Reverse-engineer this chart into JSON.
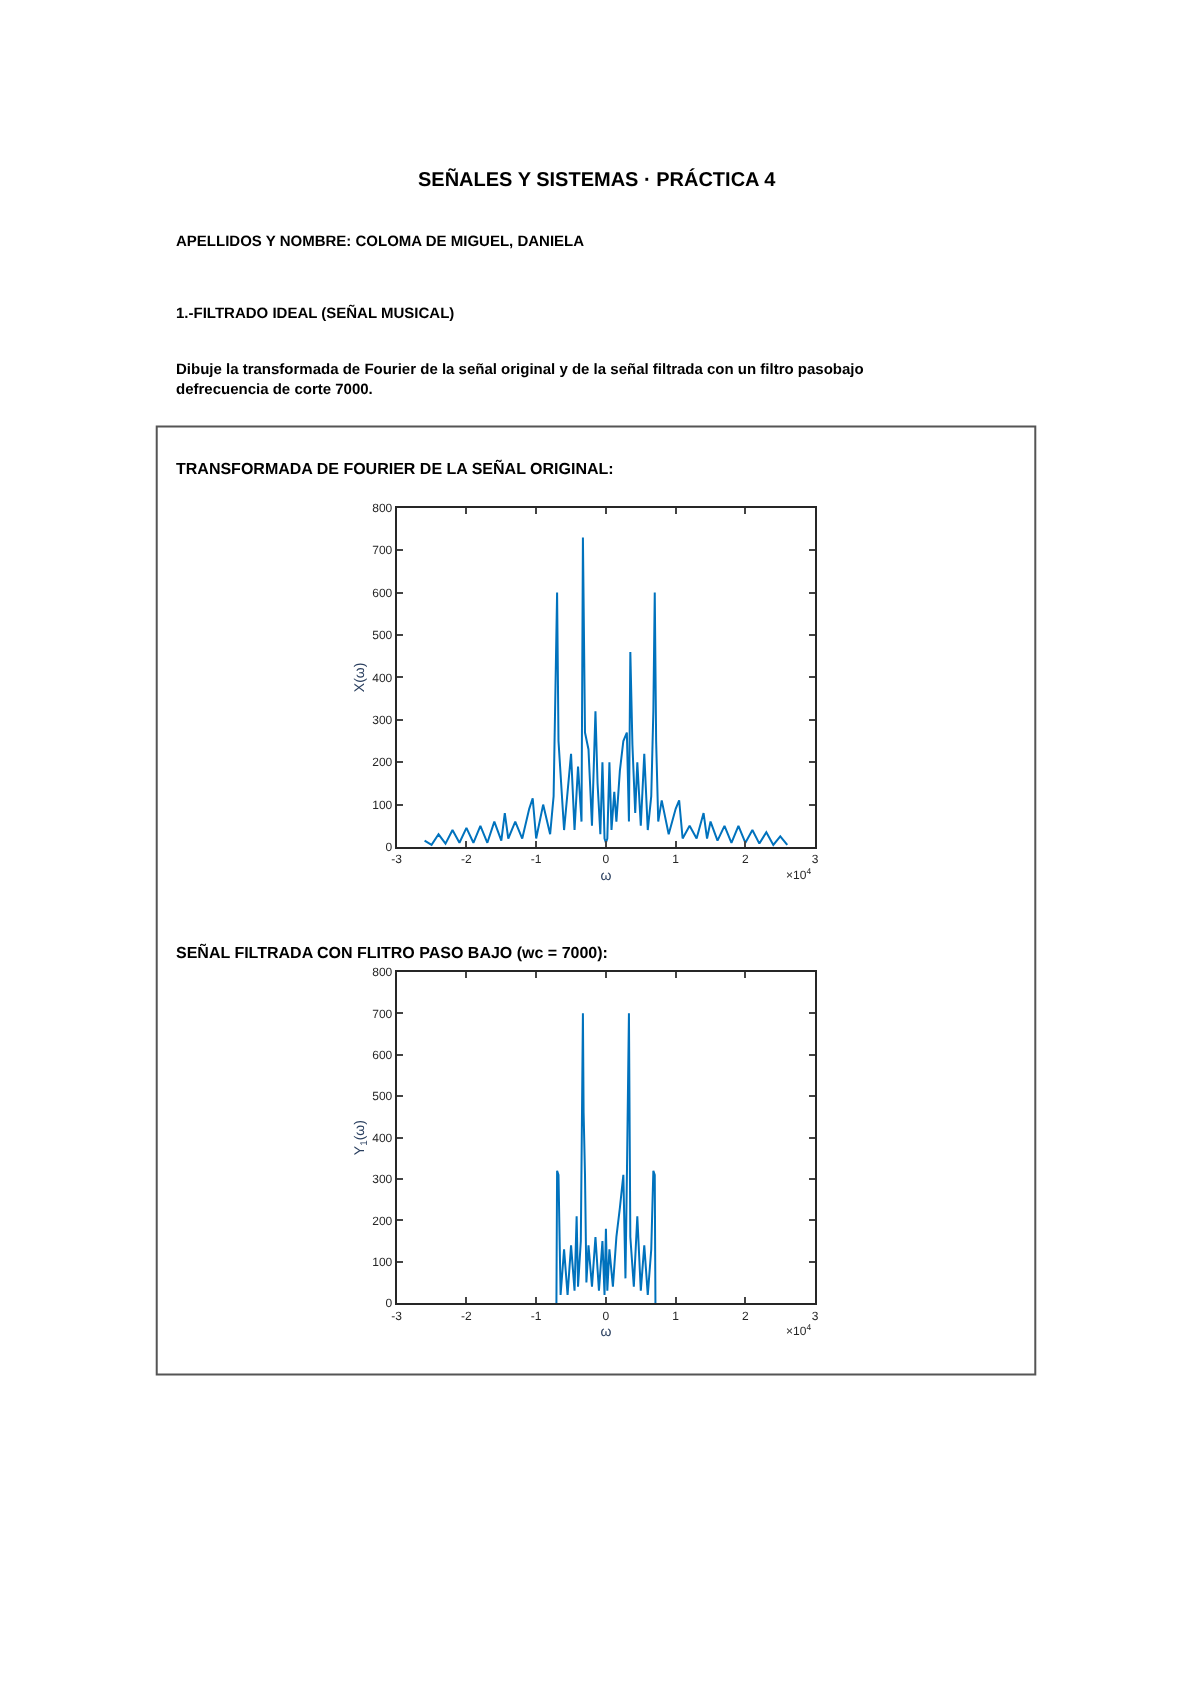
{
  "chart_data": [
    {
      "type": "line",
      "title": "TRANSFORMADA DE FOURIER DE LA SEÑAL ORIGINAL:",
      "xlabel": "ω",
      "ylabel": "X(ω)",
      "annotations": [
        "SEÑALES Y SISTEMAS · PRÁCTICA 4",
        "APELLIDOS Y NOMBRE: COLOMA DE MIGUEL, DANIELA",
        "1.-FILTRADO IDEAL (SEÑAL MUSICAL)",
        "Dibuje la transformada de Fourier de la señal original y de la señal filtrada con un filtro pasobajo defrecuencia de corte 7000.",
        "×10$^{4}$"
      ],
      "xlim": [
        -3,
        3
      ],
      "xticks": [
        -3,
        -2,
        -1,
        0,
        1,
        2,
        3
      ],
      "ylim": [
        0,
        800
      ],
      "yticks": [
        0,
        100,
        200,
        300,
        400,
        500,
        600,
        700,
        800
      ],
      "series": [
        {
          "color": "#0072bd",
          "x": [
            -2.6,
            -2.5,
            -2.4,
            -2.3,
            -2.2,
            -2.1,
            -2.0,
            -1.9,
            -1.8,
            -1.7,
            -1.6,
            -1.5,
            -1.45,
            -1.4,
            -1.3,
            -1.2,
            -1.1,
            -1.05,
            -1.0,
            -0.9,
            -0.8,
            -0.75,
            -0.7,
            -0.68,
            -0.6,
            -0.55,
            -0.5,
            -0.45,
            -0.4,
            -0.35,
            -0.33,
            -0.3,
            -0.25,
            -0.2,
            -0.15,
            -0.12,
            -0.08,
            -0.05,
            -0.02,
            0,
            0.02,
            0.05,
            0.08,
            0.12,
            0.15,
            0.2,
            0.25,
            0.3,
            0.33,
            0.35,
            0.38,
            0.42,
            0.45,
            0.5,
            0.55,
            0.6,
            0.65,
            0.68,
            0.7,
            0.72,
            0.75,
            0.8,
            0.9,
            1.0,
            1.05,
            1.1,
            1.2,
            1.3,
            1.4,
            1.45,
            1.5,
            1.6,
            1.7,
            1.8,
            1.9,
            2.0,
            2.1,
            2.2,
            2.3,
            2.4,
            2.5,
            2.6
          ],
          "values": [
            15,
            5,
            30,
            8,
            40,
            10,
            45,
            10,
            50,
            10,
            60,
            15,
            80,
            20,
            60,
            20,
            90,
            115,
            20,
            100,
            30,
            120,
            600,
            250,
            40,
            130,
            220,
            40,
            190,
            60,
            730,
            270,
            230,
            50,
            320,
            150,
            30,
            200,
            20,
            10,
            20,
            200,
            40,
            130,
            60,
            180,
            250,
            270,
            60,
            460,
            240,
            80,
            200,
            50,
            220,
            40,
            120,
            320,
            600,
            250,
            60,
            110,
            30,
            90,
            110,
            20,
            50,
            20,
            80,
            20,
            60,
            15,
            50,
            10,
            50,
            10,
            40,
            8,
            35,
            5,
            25,
            5
          ]
        }
      ]
    },
    {
      "type": "line",
      "title": "SEÑAL FILTRADA CON FLITRO PASO BAJO (wc = 7000):",
      "xlabel": "ω",
      "ylabel": "Y$_{1}$(ω)",
      "annotations": [
        "×10$^{4}$"
      ],
      "xlim": [
        -3,
        3
      ],
      "xticks": [
        -3,
        -2,
        -1,
        0,
        1,
        2,
        3
      ],
      "ylim": [
        0,
        800
      ],
      "yticks": [
        0,
        100,
        200,
        300,
        400,
        500,
        600,
        700,
        800
      ],
      "series": [
        {
          "color": "#0072bd",
          "x": [
            -0.71,
            -0.7,
            -0.68,
            -0.65,
            -0.6,
            -0.55,
            -0.5,
            -0.45,
            -0.42,
            -0.4,
            -0.36,
            -0.33,
            -0.32,
            -0.3,
            -0.28,
            -0.25,
            -0.2,
            -0.15,
            -0.1,
            -0.05,
            -0.02,
            0,
            0.02,
            0.05,
            0.1,
            0.15,
            0.2,
            0.25,
            0.28,
            0.3,
            0.33,
            0.35,
            0.4,
            0.45,
            0.5,
            0.55,
            0.6,
            0.65,
            0.68,
            0.7,
            0.71
          ],
          "values": [
            0,
            320,
            310,
            20,
            130,
            20,
            140,
            30,
            210,
            40,
            150,
            700,
            460,
            310,
            50,
            140,
            40,
            160,
            30,
            150,
            20,
            180,
            30,
            130,
            40,
            160,
            230,
            310,
            60,
            300,
            700,
            160,
            40,
            210,
            30,
            140,
            20,
            130,
            320,
            310,
            0
          ]
        }
      ]
    }
  ]
}
